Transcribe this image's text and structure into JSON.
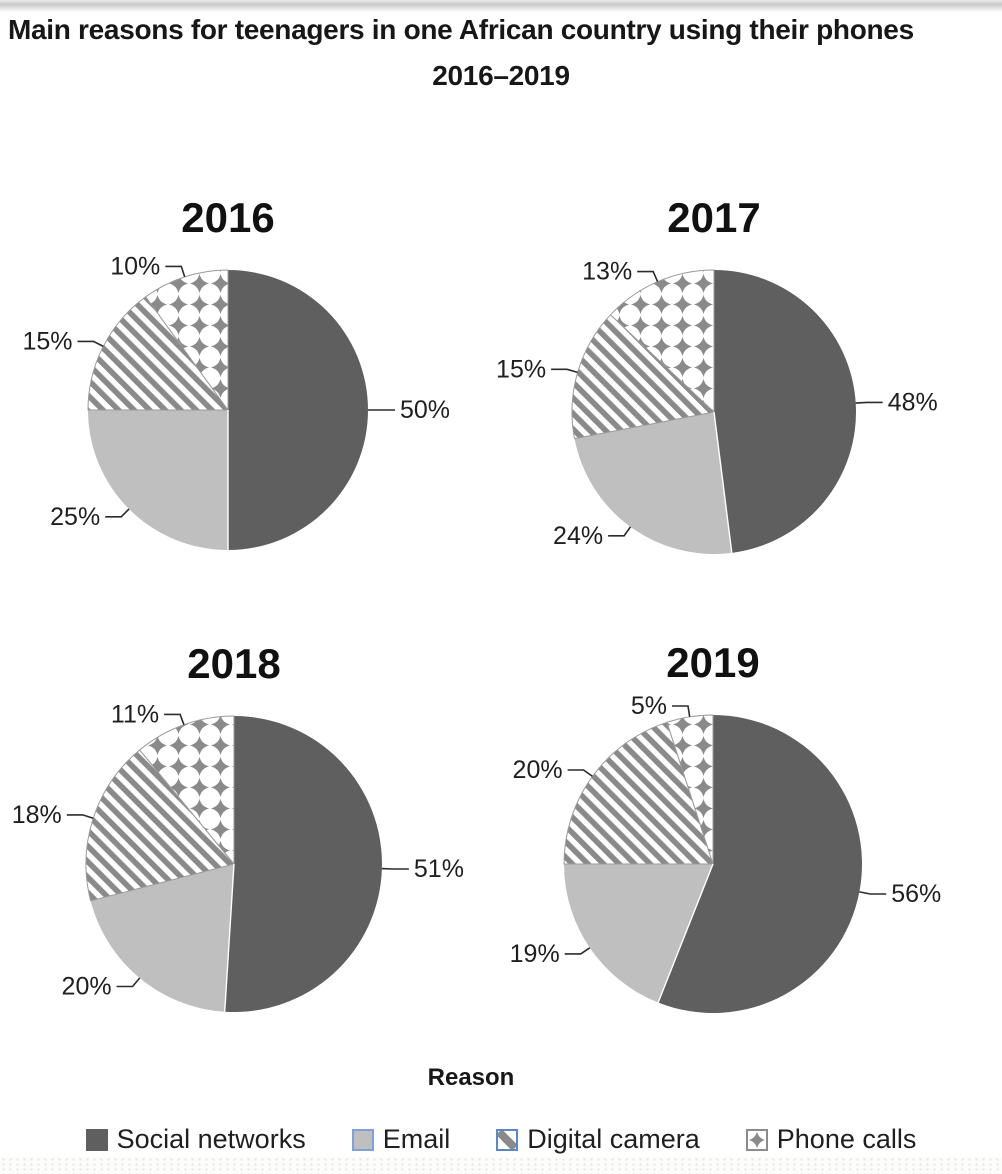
{
  "page": {
    "title_line1": "Main reasons for teenagers in one African country using their phones",
    "title_line2": "2016–2019",
    "axis_label": "Reason"
  },
  "legend": {
    "items": [
      {
        "label": "Social networks",
        "swatch": "solid-dark"
      },
      {
        "label": "Email",
        "swatch": "solid-light"
      },
      {
        "label": "Digital camera",
        "swatch": "stripe"
      },
      {
        "label": "Phone calls",
        "swatch": "diamond"
      }
    ]
  },
  "colors": {
    "social_networks": "#5f5f5f",
    "email": "#bfbfbf",
    "pattern_gray": "#8a8a8a",
    "pattern_slice_outline": "#9b9b9b",
    "label_text": "#1f1f1f",
    "leader_line": "#2b2b2b",
    "year_title": "#111111"
  },
  "chart_data": [
    {
      "type": "pie",
      "title": "2016",
      "categories": [
        "Social networks",
        "Email",
        "Digital camera",
        "Phone calls"
      ],
      "values": [
        50,
        25,
        15,
        10
      ],
      "labels": [
        "50%",
        "25%",
        "15%",
        "10%"
      ],
      "unit": "percent",
      "start_angle_deg": 0,
      "direction": "clockwise",
      "legend_position": "bottom"
    },
    {
      "type": "pie",
      "title": "2017",
      "categories": [
        "Social networks",
        "Email",
        "Digital camera",
        "Phone calls"
      ],
      "values": [
        48,
        24,
        15,
        13
      ],
      "labels": [
        "48%",
        "24%",
        "15%",
        "13%"
      ],
      "unit": "percent",
      "start_angle_deg": 0,
      "direction": "clockwise",
      "legend_position": "bottom"
    },
    {
      "type": "pie",
      "title": "2018",
      "categories": [
        "Social networks",
        "Email",
        "Digital camera",
        "Phone calls"
      ],
      "values": [
        51,
        20,
        18,
        11
      ],
      "labels": [
        "51%",
        "20%",
        "18%",
        "11%"
      ],
      "unit": "percent",
      "start_angle_deg": 0,
      "direction": "clockwise",
      "legend_position": "bottom"
    },
    {
      "type": "pie",
      "title": "2019",
      "categories": [
        "Social networks",
        "Email",
        "Digital camera",
        "Phone calls"
      ],
      "values": [
        56,
        19,
        20,
        5
      ],
      "labels": [
        "56%",
        "19%",
        "20%",
        "5%"
      ],
      "unit": "percent",
      "start_angle_deg": 0,
      "direction": "clockwise",
      "legend_position": "bottom"
    }
  ]
}
